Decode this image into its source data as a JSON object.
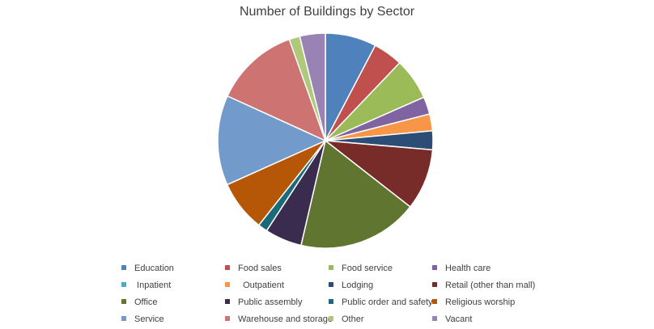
{
  "chart_data": {
    "type": "pie",
    "title": "Number of Buildings by Sector",
    "categories": [
      "Education",
      "Food sales",
      "Food service",
      "Health care",
      "Inpatient",
      "Outpatient",
      "Lodging",
      "Retail (other than mall)",
      "Office",
      "Public assembly",
      "Public order and safety",
      "Religious worship",
      "Service",
      "Warehouse and storage",
      "Other",
      "Vacant"
    ],
    "values": [
      7.6,
      4.4,
      6.2,
      2.6,
      0.0,
      2.5,
      2.8,
      9.1,
      17.9,
      5.5,
      1.4,
      7.6,
      13.4,
      12.6,
      1.6,
      3.8
    ],
    "colors": [
      "#4F81BD",
      "#C0504D",
      "#9BBB59",
      "#8064A2",
      "#4BACC6",
      "#F79646",
      "#2C4D75",
      "#772C2A",
      "#5F7530",
      "#3A2C4E",
      "#1B6A7A",
      "#B65708",
      "#729ACA",
      "#CD7371",
      "#AFC97A",
      "#9983B5"
    ],
    "legend_position": "bottom",
    "legend_labels": [
      "Education",
      "Food sales",
      "Food service",
      "Health care",
      " Inpatient",
      "  Outpatient",
      "Lodging",
      "Retail (other than mall)",
      "Office",
      "Public assembly",
      "Public order and safety",
      "Religious worship",
      "Service",
      "Warehouse and storage",
      "Other",
      "Vacant"
    ]
  }
}
